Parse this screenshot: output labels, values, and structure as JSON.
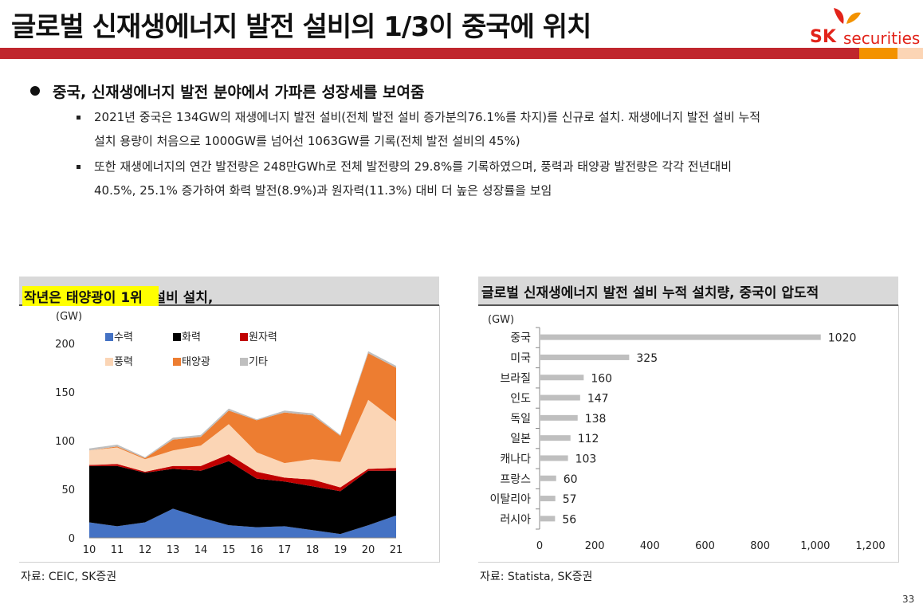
{
  "header": {
    "title": "글로벌 신재생에너지 발전 설비의 1/3이 중국에 위치",
    "logo_sk": "SK",
    "logo_securities": "securities"
  },
  "bullets": {
    "main": "중국, 신재생에너지 발전 분야에서 가파른 성장세를 보여줌",
    "sub1_line1": "2021년 중국은 134GW의 재생에너지 발전 설비(전체 발전 설비 증가분의76.1%를 차지)를 신규로 설치. 재생에너지 발전 설비 누적",
    "sub1_line2": "설치 용량이 처음으로 1000GW를 넘어선 1063GW를 기록(전체 발전 설비의 45%)",
    "sub2_line1": "또한 재생에너지의 연간 발전량은 248만GWh로 전체 발전량의 29.8%를 기록하였으며, 풍력과 태양광 발전량은 각각 전년대비",
    "sub2_line2": "40.5%, 25.1% 증가하여 화력 발전(8.9%)과 원자력(11.3%) 대비 더 높은 성장률을 보임"
  },
  "left_panel": {
    "title_plain": "중국의 연간 신규 발전 설비 설치, ",
    "title_highlight": "작년은 태양광이 1위",
    "source": "자료: CEIC, SK증권"
  },
  "right_panel": {
    "title": "글로벌 신재생에너지 발전 설비 누적 설치량, 중국이 압도적",
    "source": "자료: Statista, SK증권"
  },
  "page_number": "33",
  "colors": {
    "accent_red": "#c0262d",
    "accent_orange": "#f39200",
    "accent_peach": "#fcd5b5",
    "hydro": "#4472c4",
    "thermal": "#000000",
    "nuclear": "#c00000",
    "wind": "#fbd5b5",
    "solar": "#ed7d31",
    "other": "#bfbfbf",
    "bar": "#bfbfbf"
  },
  "chart_data": [
    {
      "type": "area",
      "stacked": true,
      "unit_label": "(GW)",
      "x": [
        "10",
        "11",
        "12",
        "13",
        "14",
        "15",
        "16",
        "17",
        "18",
        "19",
        "20",
        "21"
      ],
      "ylim": [
        0,
        200
      ],
      "yticks": [
        0,
        50,
        100,
        150,
        200
      ],
      "legend_placement": "top-left",
      "series": [
        {
          "name": "수력",
          "color": "#4472c4",
          "values": [
            16,
            12,
            16,
            30,
            21,
            13,
            11,
            12,
            8,
            4,
            13,
            23
          ]
        },
        {
          "name": "화력",
          "color": "#000000",
          "values": [
            58,
            62,
            51,
            41,
            48,
            66,
            50,
            46,
            45,
            44,
            56,
            46
          ]
        },
        {
          "name": "원자력",
          "color": "#c00000",
          "values": [
            1,
            2,
            1,
            3,
            5,
            7,
            7,
            4,
            7,
            4,
            2,
            3
          ]
        },
        {
          "name": "풍력",
          "color": "#fbd5b5",
          "values": [
            15,
            17,
            13,
            16,
            21,
            31,
            20,
            15,
            21,
            26,
            71,
            48
          ]
        },
        {
          "name": "태양광",
          "color": "#ed7d31",
          "values": [
            0,
            1,
            1,
            11,
            9,
            14,
            33,
            52,
            45,
            27,
            48,
            55
          ]
        },
        {
          "name": "기타",
          "color": "#bfbfbf",
          "values": [
            2,
            2,
            1,
            2,
            2,
            2,
            1,
            2,
            2,
            1,
            2,
            2
          ]
        }
      ]
    },
    {
      "type": "bar",
      "orientation": "horizontal",
      "unit_label": "(GW)",
      "categories": [
        "중국",
        "미국",
        "브라질",
        "인도",
        "독일",
        "일본",
        "캐나다",
        "프랑스",
        "이탈리아",
        "러시아"
      ],
      "values": [
        1020,
        325,
        160,
        147,
        138,
        112,
        103,
        60,
        57,
        56
      ],
      "value_labels": [
        "1020",
        "325",
        "160",
        "147",
        "138",
        "112",
        "103",
        "60",
        "57",
        "56"
      ],
      "xlim": [
        0,
        1200
      ],
      "xticks": [
        0,
        200,
        400,
        600,
        800,
        1000,
        1200
      ],
      "xtick_labels": [
        "0",
        "200",
        "400",
        "600",
        "800",
        "1,000",
        "1,200"
      ]
    }
  ]
}
